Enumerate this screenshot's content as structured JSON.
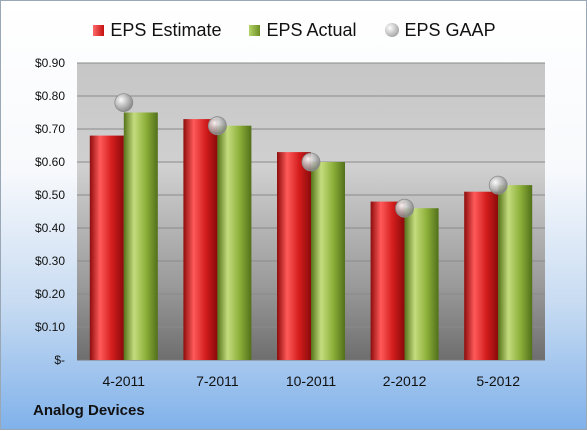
{
  "company": "Analog Devices",
  "legend": {
    "estimate": "EPS Estimate",
    "actual": "EPS Actual",
    "gaap": "EPS GAAP"
  },
  "colors": {
    "estimate": "#d42020",
    "actual": "#8db03a",
    "gaap": "#b8b8b8"
  },
  "chart_data": {
    "type": "bar",
    "categories": [
      "4-2011",
      "7-2011",
      "10-2011",
      "2-2012",
      "5-2012"
    ],
    "series": [
      {
        "name": "EPS Estimate",
        "values": [
          0.68,
          0.73,
          0.63,
          0.48,
          0.51
        ]
      },
      {
        "name": "EPS Actual",
        "values": [
          0.75,
          0.71,
          0.6,
          0.46,
          0.53
        ]
      },
      {
        "name": "EPS GAAP",
        "values": [
          0.78,
          0.71,
          0.6,
          0.46,
          0.53
        ]
      }
    ],
    "ylim": [
      0,
      0.9
    ],
    "yticks": [
      0,
      0.1,
      0.2,
      0.3,
      0.4,
      0.5,
      0.6,
      0.7,
      0.8,
      0.9
    ],
    "ytick_labels": [
      "$-",
      "$0.10",
      "$0.20",
      "$0.30",
      "$0.40",
      "$0.50",
      "$0.60",
      "$0.70",
      "$0.80",
      "$0.90"
    ],
    "grid": true,
    "legend_position": "top"
  }
}
